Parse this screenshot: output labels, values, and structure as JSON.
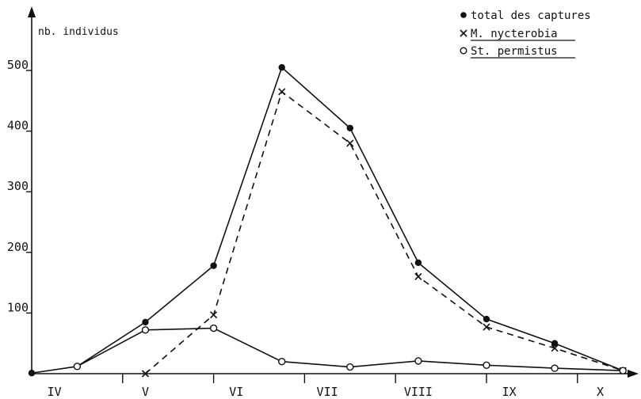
{
  "chart_data": {
    "type": "line",
    "ylabel": "nb. individus",
    "categories": [
      "IV",
      "V",
      "VI",
      "VII",
      "VIII",
      "IX",
      "X"
    ],
    "ylim": [
      0,
      500
    ],
    "yticks": [
      100,
      200,
      300,
      400,
      500
    ],
    "legend_position": "top-right",
    "series": [
      {
        "name": "total des captures",
        "marker": "filled-circle",
        "line": "solid",
        "x": [
          0.0,
          1.0,
          2.5,
          4.0,
          5.5,
          7.0,
          8.5,
          10.0,
          11.5,
          13.0
        ],
        "values": [
          1,
          12,
          85,
          178,
          505,
          405,
          183,
          90,
          50,
          5
        ]
      },
      {
        "name": "M. nycterobia",
        "marker": "cross",
        "line": "dashed",
        "underline": true,
        "x": [
          2.5,
          4.0,
          5.5,
          7.0,
          8.5,
          10.0,
          11.5,
          13.0
        ],
        "values": [
          0,
          97,
          465,
          380,
          160,
          77,
          42,
          5
        ]
      },
      {
        "name": "St. permistus",
        "marker": "open-circle",
        "line": "solid",
        "underline": true,
        "x": [
          1.0,
          2.5,
          4.0,
          5.5,
          7.0,
          8.5,
          10.0,
          11.5,
          13.0
        ],
        "values": [
          12,
          72,
          75,
          20,
          11,
          21,
          14,
          9,
          5
        ]
      }
    ]
  }
}
